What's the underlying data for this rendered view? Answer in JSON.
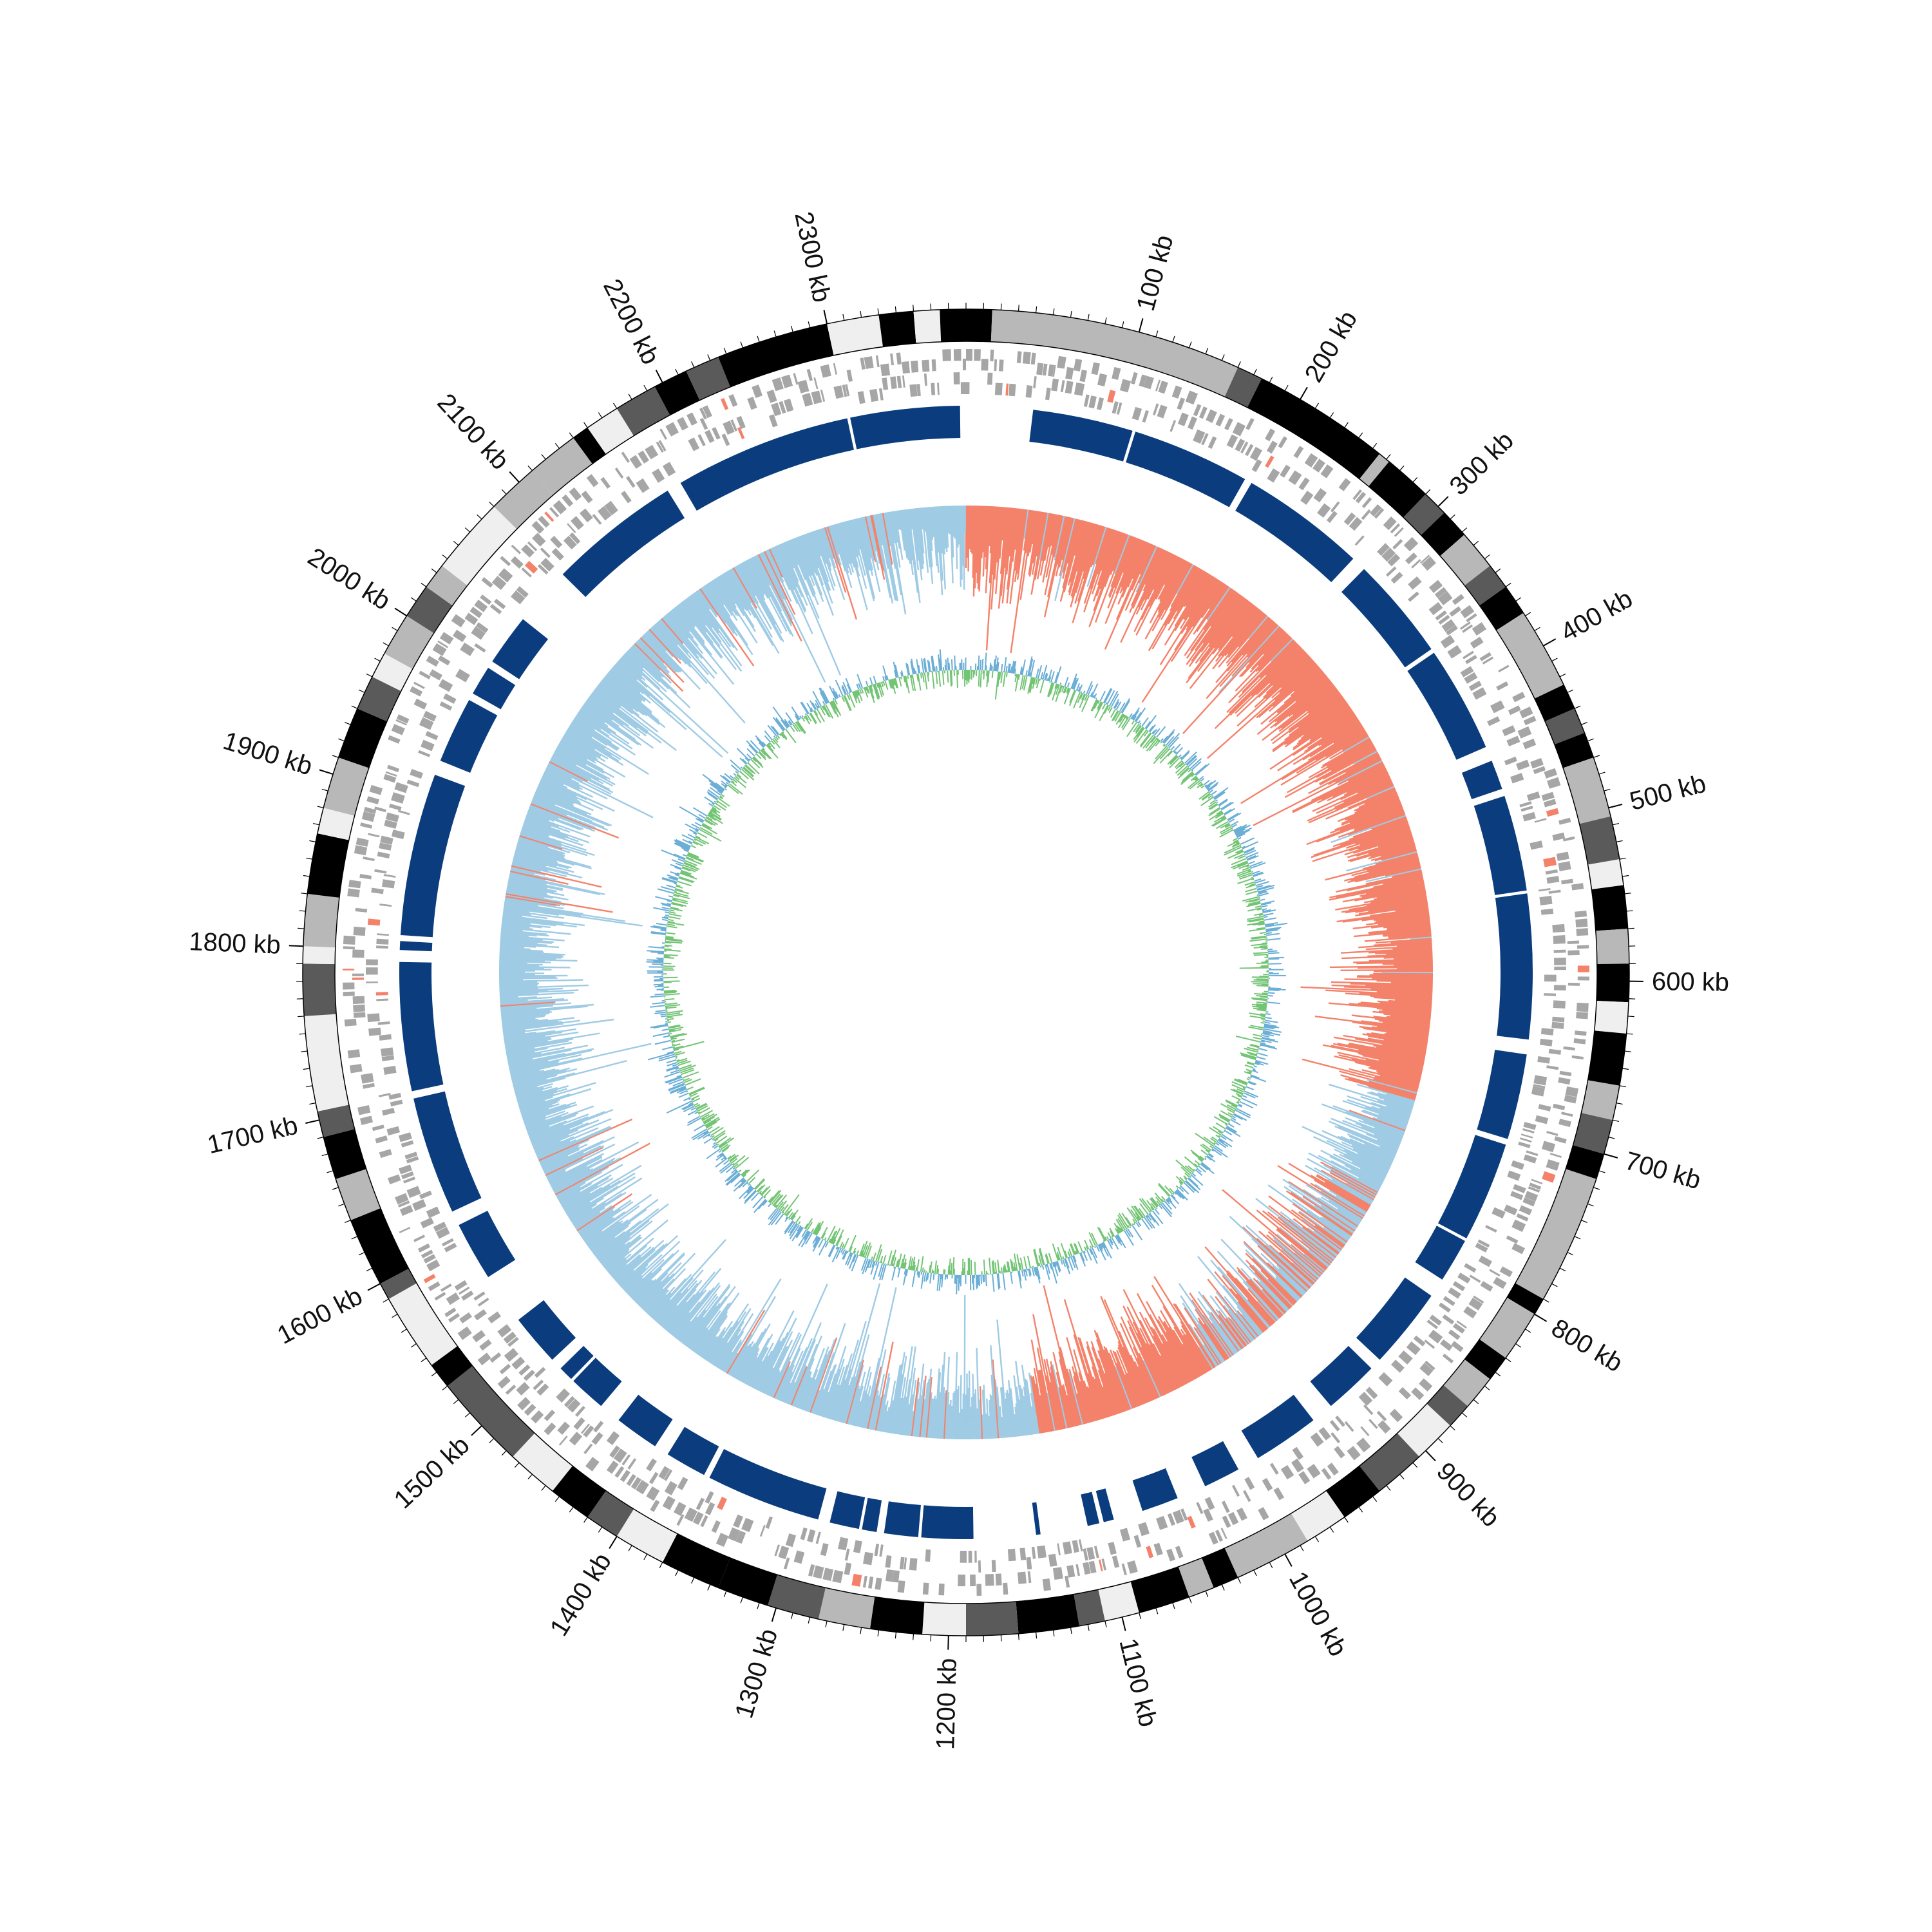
{
  "chart_data": {
    "type": "circular_genome_map",
    "genome_length_kb": 2380,
    "axis": {
      "unit": "kb",
      "tick_labels": [
        "100 kb",
        "200 kb",
        "300 kb",
        "400 kb",
        "500 kb",
        "600 kb",
        "700 kb",
        "800 kb",
        "900 kb",
        "1000 kb",
        "1100 kb",
        "1200 kb",
        "1300 kb",
        "1400 kb",
        "1500 kb",
        "1600 kb",
        "1700 kb",
        "1800 kb",
        "1900 kb",
        "2000 kb",
        "2100 kb",
        "2200 kb",
        "2300 kb"
      ],
      "major_tick_kb": [
        100,
        200,
        300,
        400,
        500,
        600,
        700,
        800,
        900,
        1000,
        1100,
        1200,
        1300,
        1400,
        1500,
        1600,
        1700,
        1800,
        1900,
        2000,
        2100,
        2200,
        2300
      ],
      "minor_tick_every_kb": 10
    },
    "tracks": [
      {
        "name": "",
        "kind": "ideogram_bands",
        "colors": {
          "black": "#000000",
          "dark": "#5a5a5a",
          "mid": "#b8b8b8",
          "light": "#efefef"
        },
        "bands": [
          {
            "start": 0,
            "end": 15,
            "shade": "black"
          },
          {
            "start": 15,
            "end": 160,
            "shade": "mid"
          },
          {
            "start": 160,
            "end": 175,
            "shade": "dark"
          },
          {
            "start": 175,
            "end": 255,
            "shade": "black"
          },
          {
            "start": 255,
            "end": 262,
            "shade": "mid"
          },
          {
            "start": 262,
            "end": 290,
            "shade": "black"
          },
          {
            "start": 290,
            "end": 305,
            "shade": "dark"
          },
          {
            "start": 305,
            "end": 322,
            "shade": "black"
          },
          {
            "start": 322,
            "end": 345,
            "shade": "mid"
          },
          {
            "start": 345,
            "end": 360,
            "shade": "dark"
          },
          {
            "start": 360,
            "end": 378,
            "shade": "black"
          },
          {
            "start": 378,
            "end": 425,
            "shade": "mid"
          },
          {
            "start": 425,
            "end": 440,
            "shade": "black"
          },
          {
            "start": 440,
            "end": 455,
            "shade": "dark"
          },
          {
            "start": 455,
            "end": 470,
            "shade": "black"
          },
          {
            "start": 470,
            "end": 505,
            "shade": "mid"
          },
          {
            "start": 505,
            "end": 530,
            "shade": "dark"
          },
          {
            "start": 530,
            "end": 545,
            "shade": "light"
          },
          {
            "start": 545,
            "end": 570,
            "shade": "black"
          },
          {
            "start": 570,
            "end": 590,
            "shade": "mid"
          },
          {
            "start": 590,
            "end": 612,
            "shade": "black"
          },
          {
            "start": 612,
            "end": 630,
            "shade": "light"
          },
          {
            "start": 630,
            "end": 660,
            "shade": "black"
          },
          {
            "start": 660,
            "end": 680,
            "shade": "mid"
          },
          {
            "start": 680,
            "end": 700,
            "shade": "dark"
          },
          {
            "start": 700,
            "end": 715,
            "shade": "black"
          },
          {
            "start": 715,
            "end": 790,
            "shade": "mid"
          },
          {
            "start": 790,
            "end": 800,
            "shade": "black"
          },
          {
            "start": 800,
            "end": 830,
            "shade": "mid"
          },
          {
            "start": 830,
            "end": 845,
            "shade": "black"
          },
          {
            "start": 845,
            "end": 865,
            "shade": "mid"
          },
          {
            "start": 865,
            "end": 880,
            "shade": "dark"
          },
          {
            "start": 880,
            "end": 905,
            "shade": "light"
          },
          {
            "start": 905,
            "end": 935,
            "shade": "dark"
          },
          {
            "start": 935,
            "end": 960,
            "shade": "black"
          },
          {
            "start": 960,
            "end": 985,
            "shade": "light"
          },
          {
            "start": 985,
            "end": 1030,
            "shade": "mid"
          },
          {
            "start": 1030,
            "end": 1045,
            "shade": "black"
          },
          {
            "start": 1045,
            "end": 1060,
            "shade": "mid"
          },
          {
            "start": 1060,
            "end": 1090,
            "shade": "black"
          },
          {
            "start": 1090,
            "end": 1110,
            "shade": "light"
          },
          {
            "start": 1110,
            "end": 1125,
            "shade": "dark"
          },
          {
            "start": 1125,
            "end": 1160,
            "shade": "black"
          },
          {
            "start": 1160,
            "end": 1190,
            "shade": "dark"
          },
          {
            "start": 1190,
            "end": 1215,
            "shade": "light"
          },
          {
            "start": 1215,
            "end": 1245,
            "shade": "black"
          },
          {
            "start": 1245,
            "end": 1275,
            "shade": "mid"
          },
          {
            "start": 1275,
            "end": 1305,
            "shade": "dark"
          },
          {
            "start": 1305,
            "end": 1335,
            "shade": "black"
          },
          {
            "start": 1335,
            "end": 1370,
            "shade": "black"
          },
          {
            "start": 1370,
            "end": 1400,
            "shade": "light"
          },
          {
            "start": 1400,
            "end": 1420,
            "shade": "dark"
          },
          {
            "start": 1420,
            "end": 1445,
            "shade": "black"
          },
          {
            "start": 1445,
            "end": 1475,
            "shade": "light"
          },
          {
            "start": 1475,
            "end": 1530,
            "shade": "dark"
          },
          {
            "start": 1530,
            "end": 1545,
            "shade": "black"
          },
          {
            "start": 1545,
            "end": 1590,
            "shade": "light"
          },
          {
            "start": 1590,
            "end": 1600,
            "shade": "dark"
          },
          {
            "start": 1600,
            "end": 1640,
            "shade": "black"
          },
          {
            "start": 1640,
            "end": 1665,
            "shade": "mid"
          },
          {
            "start": 1665,
            "end": 1690,
            "shade": "black"
          },
          {
            "start": 1690,
            "end": 1705,
            "shade": "dark"
          },
          {
            "start": 1705,
            "end": 1760,
            "shade": "light"
          },
          {
            "start": 1760,
            "end": 1790,
            "shade": "dark"
          },
          {
            "start": 1790,
            "end": 1800,
            "shade": "light"
          },
          {
            "start": 1800,
            "end": 1830,
            "shade": "mid"
          },
          {
            "start": 1830,
            "end": 1865,
            "shade": "black"
          },
          {
            "start": 1865,
            "end": 1880,
            "shade": "light"
          },
          {
            "start": 1880,
            "end": 1910,
            "shade": "mid"
          },
          {
            "start": 1910,
            "end": 1940,
            "shade": "black"
          },
          {
            "start": 1940,
            "end": 1960,
            "shade": "dark"
          },
          {
            "start": 1960,
            "end": 1975,
            "shade": "light"
          },
          {
            "start": 1975,
            "end": 2000,
            "shade": "mid"
          },
          {
            "start": 2000,
            "end": 2020,
            "shade": "dark"
          },
          {
            "start": 2020,
            "end": 2035,
            "shade": "mid"
          },
          {
            "start": 2035,
            "end": 2080,
            "shade": "light"
          },
          {
            "start": 2080,
            "end": 2110,
            "shade": "mid"
          },
          {
            "start": 2110,
            "end": 2140,
            "shade": "mid"
          },
          {
            "start": 2140,
            "end": 2150,
            "shade": "black"
          },
          {
            "start": 2150,
            "end": 2170,
            "shade": "light"
          },
          {
            "start": 2170,
            "end": 2195,
            "shade": "dark"
          },
          {
            "start": 2195,
            "end": 2215,
            "shade": "black"
          },
          {
            "start": 2215,
            "end": 2235,
            "shade": "dark"
          },
          {
            "start": 2235,
            "end": 2300,
            "shade": "black"
          },
          {
            "start": 2300,
            "end": 2330,
            "shade": "light"
          },
          {
            "start": 2330,
            "end": 2350,
            "shade": "black"
          },
          {
            "start": 2350,
            "end": 2365,
            "shade": "light"
          },
          {
            "start": 2365,
            "end": 2380,
            "shade": "black"
          }
        ]
      },
      {
        "name": "",
        "kind": "gene_features",
        "color": "#a6a6a6",
        "accent_color": "#f4826a",
        "note_sampling": "dense gene blocks on two strands"
      },
      {
        "name": "",
        "kind": "blocks",
        "color": "#0b3d7e",
        "accent_color": "#1f6fb5",
        "blocks": [
          {
            "start": 2180,
            "end": 2300
          },
          {
            "start": 2302,
            "end": 2376
          },
          {
            "start": 45,
            "end": 113
          },
          {
            "start": 115,
            "end": 195
          },
          {
            "start": 200,
            "end": 285
          },
          {
            "start": 295,
            "end": 365
          },
          {
            "start": 368,
            "end": 440
          },
          {
            "start": 450,
            "end": 470
          },
          {
            "start": 475,
            "end": 540
          },
          {
            "start": 542,
            "end": 640
          },
          {
            "start": 650,
            "end": 708
          },
          {
            "start": 712,
            "end": 780
          },
          {
            "start": 782,
            "end": 812
          },
          {
            "start": 825,
            "end": 880
          },
          {
            "start": 888,
            "end": 925
          },
          {
            "start": 940,
            "end": 985
          },
          {
            "start": 1000,
            "end": 1025
          },
          {
            "start": 1045,
            "end": 1070
          },
          {
            "start": 1090,
            "end": 1097
          },
          {
            "start": 1100,
            "end": 1108
          },
          {
            "start": 1140,
            "end": 1143
          },
          {
            "start": 1185,
            "end": 1220
          },
          {
            "start": 1222,
            "end": 1245
          },
          {
            "start": 1250,
            "end": 1260
          },
          {
            "start": 1262,
            "end": 1282
          },
          {
            "start": 1290,
            "end": 1368
          },
          {
            "start": 1372,
            "end": 1400
          },
          {
            "start": 1410,
            "end": 1440
          },
          {
            "start": 1455,
            "end": 1480
          },
          {
            "start": 1482,
            "end": 1492
          },
          {
            "start": 1500,
            "end": 1535
          },
          {
            "start": 1570,
            "end": 1610
          },
          {
            "start": 1620,
            "end": 1700
          },
          {
            "start": 1705,
            "end": 1792
          },
          {
            "start": 1800,
            "end": 1806
          },
          {
            "start": 1810,
            "end": 1920
          },
          {
            "start": 1930,
            "end": 1975
          },
          {
            "start": 1980,
            "end": 2000
          },
          {
            "start": 2005,
            "end": 2040
          },
          {
            "start": 2080,
            "end": 2170
          }
        ]
      },
      {
        "name": "",
        "kind": "skew_histogram",
        "positive_color": "#f4826a",
        "negative_color": "#9fcbe4",
        "sign_segments": [
          {
            "start": 0,
            "end": 700,
            "sign": "positive"
          },
          {
            "start": 700,
            "end": 780,
            "sign": "negative"
          },
          {
            "start": 780,
            "end": 980,
            "sign": "mixed"
          },
          {
            "start": 980,
            "end": 1130,
            "sign": "positive"
          },
          {
            "start": 1130,
            "end": 2380,
            "sign": "negative"
          }
        ]
      },
      {
        "name": "",
        "kind": "content_line",
        "color_above": "#6baed6",
        "color_below": "#74c476"
      }
    ]
  }
}
